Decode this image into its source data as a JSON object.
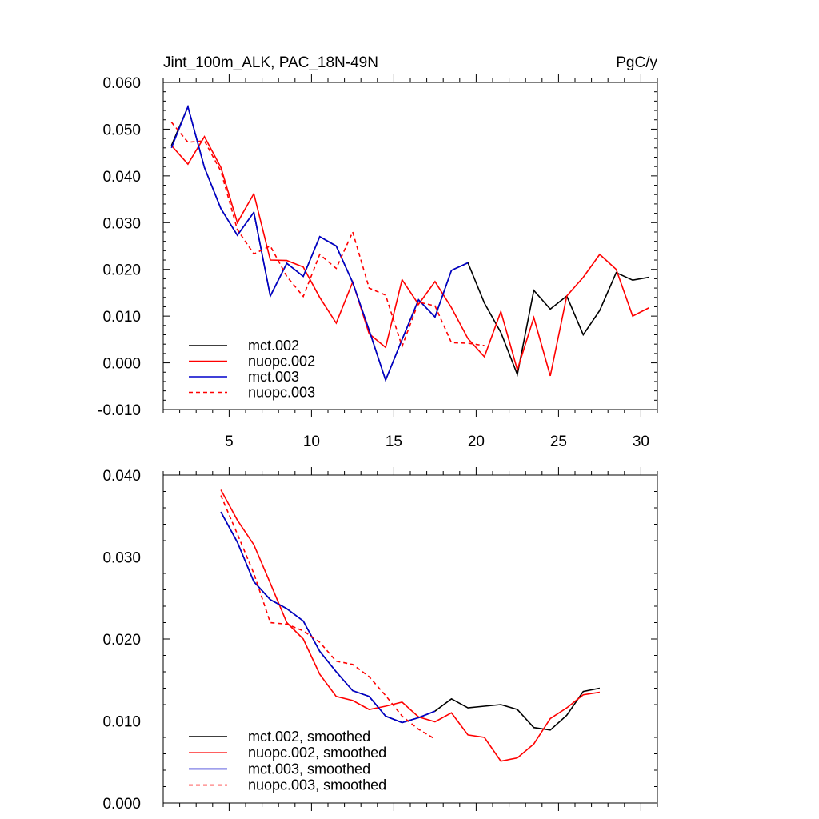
{
  "chart_data": [
    {
      "type": "line",
      "title": "Jint_100m_ALK, PAC_18N-49N",
      "units": "PgC/y",
      "xlim": [
        1,
        31
      ],
      "ylim": [
        -0.01,
        0.06
      ],
      "xticks": [
        5,
        10,
        15,
        20,
        25,
        30
      ],
      "xtick_labels": [
        "5",
        "10",
        "15",
        "20",
        "25",
        "30"
      ],
      "yticks": [
        -0.01,
        0.0,
        0.01,
        0.02,
        0.03,
        0.04,
        0.05,
        0.06
      ],
      "ytick_labels": [
        "-0.010",
        "0.000",
        "0.010",
        "0.020",
        "0.030",
        "0.040",
        "0.050",
        "0.060"
      ],
      "legend_position": "bottom-left",
      "series": [
        {
          "name": "mct.002",
          "color": "#000000",
          "dash": "solid",
          "x": [
            1.5,
            2.5,
            3.5,
            4.5,
            5.5,
            6.5,
            7.5,
            8.5,
            9.5,
            10.5,
            11.5,
            12.5,
            13.5,
            14.5,
            15.5,
            16.5,
            17.5,
            18.5,
            19.5,
            20.5,
            21.5,
            22.5,
            23.5,
            24.5,
            25.5,
            26.5,
            27.5,
            28.5,
            29.5,
            30.5
          ],
          "values": [
            0.0465,
            0.0548,
            0.0418,
            0.033,
            0.0273,
            0.0322,
            0.0143,
            0.0213,
            0.0185,
            0.027,
            0.025,
            0.0172,
            0.007,
            -0.0037,
            0.005,
            0.0135,
            0.0098,
            0.0198,
            0.0214,
            0.0128,
            0.0065,
            -0.0025,
            0.0155,
            0.0115,
            0.0143,
            0.006,
            0.0112,
            0.0193,
            0.0177,
            0.0183
          ]
        },
        {
          "name": "nuopc.002",
          "color": "#ff0000",
          "dash": "solid",
          "x": [
            1.5,
            2.5,
            3.5,
            4.5,
            5.5,
            6.5,
            7.5,
            8.5,
            9.5,
            10.5,
            11.5,
            12.5,
            13.5,
            14.5,
            15.5,
            16.5,
            17.5,
            18.5,
            19.5,
            20.5,
            21.5,
            22.5,
            23.5,
            24.5,
            25.5,
            26.5,
            27.5,
            28.5,
            29.5,
            30.5
          ],
          "values": [
            0.0465,
            0.0425,
            0.0484,
            0.0418,
            0.03,
            0.0362,
            0.022,
            0.0219,
            0.0205,
            0.014,
            0.0085,
            0.0173,
            0.0062,
            0.0033,
            0.0178,
            0.0125,
            0.0174,
            0.0118,
            0.0052,
            0.0013,
            0.011,
            -0.0015,
            0.0097,
            -0.0028,
            0.0143,
            0.0183,
            0.0232,
            0.02,
            0.01,
            0.0118
          ]
        },
        {
          "name": "mct.003",
          "color": "#0000cc",
          "dash": "solid",
          "x": [
            1.5,
            2.5,
            3.5,
            4.5,
            5.5,
            6.5,
            7.5,
            8.5,
            9.5,
            10.5,
            11.5,
            12.5,
            13.5,
            14.5,
            15.5,
            16.5,
            17.5,
            18.5,
            19.5
          ],
          "values": [
            0.046,
            0.0548,
            0.0418,
            0.033,
            0.0273,
            0.0322,
            0.0143,
            0.0213,
            0.0185,
            0.027,
            0.025,
            0.0172,
            0.007,
            -0.0037,
            0.005,
            0.0135,
            0.0098,
            0.0198,
            0.0214
          ]
        },
        {
          "name": "nuopc.003",
          "color": "#ff0000",
          "dash": "dashed",
          "x": [
            1.5,
            2.5,
            3.5,
            4.5,
            5.5,
            6.5,
            7.5,
            8.5,
            9.5,
            10.5,
            11.5,
            12.5,
            13.5,
            14.5,
            15.5,
            16.5,
            17.5,
            18.5,
            19.5,
            20.5
          ],
          "values": [
            0.0515,
            0.0472,
            0.0475,
            0.041,
            0.0285,
            0.0233,
            0.025,
            0.0185,
            0.0142,
            0.0232,
            0.0202,
            0.028,
            0.016,
            0.0145,
            0.0035,
            0.013,
            0.0122,
            0.0043,
            0.0042,
            0.0037
          ]
        }
      ]
    },
    {
      "type": "line",
      "title": "",
      "xlim": [
        1,
        31
      ],
      "ylim": [
        0.0,
        0.04
      ],
      "xticks": [
        5,
        10,
        15,
        20,
        25,
        30
      ],
      "yticks": [
        0.0,
        0.01,
        0.02,
        0.03,
        0.04
      ],
      "ytick_labels": [
        "0.000",
        "0.010",
        "0.020",
        "0.030",
        "0.040"
      ],
      "legend_position": "bottom-left",
      "series": [
        {
          "name": "mct.002, smoothed",
          "color": "#000000",
          "dash": "solid",
          "x": [
            4.5,
            5.5,
            6.5,
            7.5,
            8.5,
            9.5,
            10.5,
            11.5,
            12.5,
            13.5,
            14.5,
            15.5,
            16.5,
            17.5,
            18.5,
            19.5,
            20.5,
            21.5,
            22.5,
            23.5,
            24.5,
            25.5,
            26.5,
            27.5
          ],
          "values": [
            0.0355,
            0.0318,
            0.027,
            0.0248,
            0.0237,
            0.0222,
            0.0185,
            0.016,
            0.0137,
            0.013,
            0.0106,
            0.0098,
            0.0104,
            0.0112,
            0.0127,
            0.0116,
            0.0118,
            0.012,
            0.0114,
            0.0092,
            0.0089,
            0.0107,
            0.0136,
            0.014
          ]
        },
        {
          "name": "nuopc.002, smoothed",
          "color": "#ff0000",
          "dash": "solid",
          "x": [
            4.5,
            5.5,
            6.5,
            7.5,
            8.5,
            9.5,
            10.5,
            11.5,
            12.5,
            13.5,
            14.5,
            15.5,
            16.5,
            17.5,
            18.5,
            19.5,
            20.5,
            21.5,
            22.5,
            23.5,
            24.5,
            25.5,
            26.5,
            27.5
          ],
          "values": [
            0.0382,
            0.0345,
            0.0315,
            0.0268,
            0.022,
            0.02,
            0.0157,
            0.013,
            0.0125,
            0.0114,
            0.0118,
            0.0123,
            0.0105,
            0.0099,
            0.011,
            0.0083,
            0.008,
            0.0051,
            0.0055,
            0.0072,
            0.0103,
            0.0116,
            0.0132,
            0.0135
          ]
        },
        {
          "name": "mct.003, smoothed",
          "color": "#0000cc",
          "dash": "solid",
          "x": [
            4.5,
            5.5,
            6.5,
            7.5,
            8.5,
            9.5,
            10.5,
            11.5,
            12.5,
            13.5,
            14.5,
            15.5,
            16.5,
            17.5
          ],
          "values": [
            0.0355,
            0.0318,
            0.027,
            0.0248,
            0.0237,
            0.0222,
            0.0185,
            0.016,
            0.0137,
            0.013,
            0.0106,
            0.0098,
            0.0104,
            0.0112
          ]
        },
        {
          "name": "nuopc.003, smoothed",
          "color": "#ff0000",
          "dash": "dashed",
          "x": [
            4.5,
            5.5,
            6.5,
            7.5,
            8.5,
            9.5,
            10.5,
            11.5,
            12.5,
            13.5,
            14.5,
            15.5,
            16.5,
            17.5
          ],
          "values": [
            0.0375,
            0.0328,
            0.028,
            0.022,
            0.0218,
            0.021,
            0.0196,
            0.0173,
            0.0169,
            0.0154,
            0.0131,
            0.0106,
            0.009,
            0.0078
          ]
        }
      ]
    }
  ]
}
